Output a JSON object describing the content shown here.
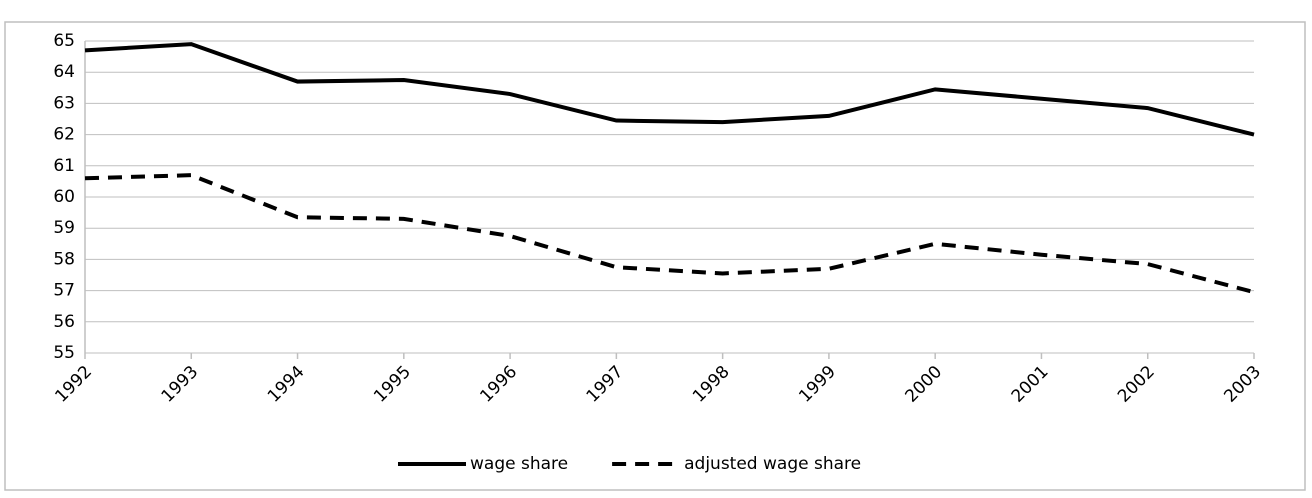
{
  "chart_data": {
    "type": "line",
    "categories": [
      "1992",
      "1993",
      "1994",
      "1995",
      "1996",
      "1997",
      "1998",
      "1999",
      "2000",
      "2001",
      "2002",
      "2003"
    ],
    "series": [
      {
        "name": "wage share",
        "color": "#000000",
        "dash": false,
        "values": [
          64.7,
          64.9,
          63.7,
          63.75,
          63.3,
          62.45,
          62.4,
          62.6,
          63.45,
          63.15,
          62.85,
          62.0
        ]
      },
      {
        "name": "adjusted wage share",
        "color": "#000000",
        "dash": true,
        "values": [
          60.6,
          60.7,
          59.35,
          59.3,
          58.75,
          57.75,
          57.55,
          57.7,
          58.5,
          58.15,
          57.85,
          56.95
        ]
      }
    ],
    "ylim": [
      55,
      65
    ],
    "yticks": [
      55,
      56,
      57,
      58,
      59,
      60,
      61,
      62,
      63,
      64,
      65
    ],
    "grid": true,
    "legend": "bottom"
  }
}
